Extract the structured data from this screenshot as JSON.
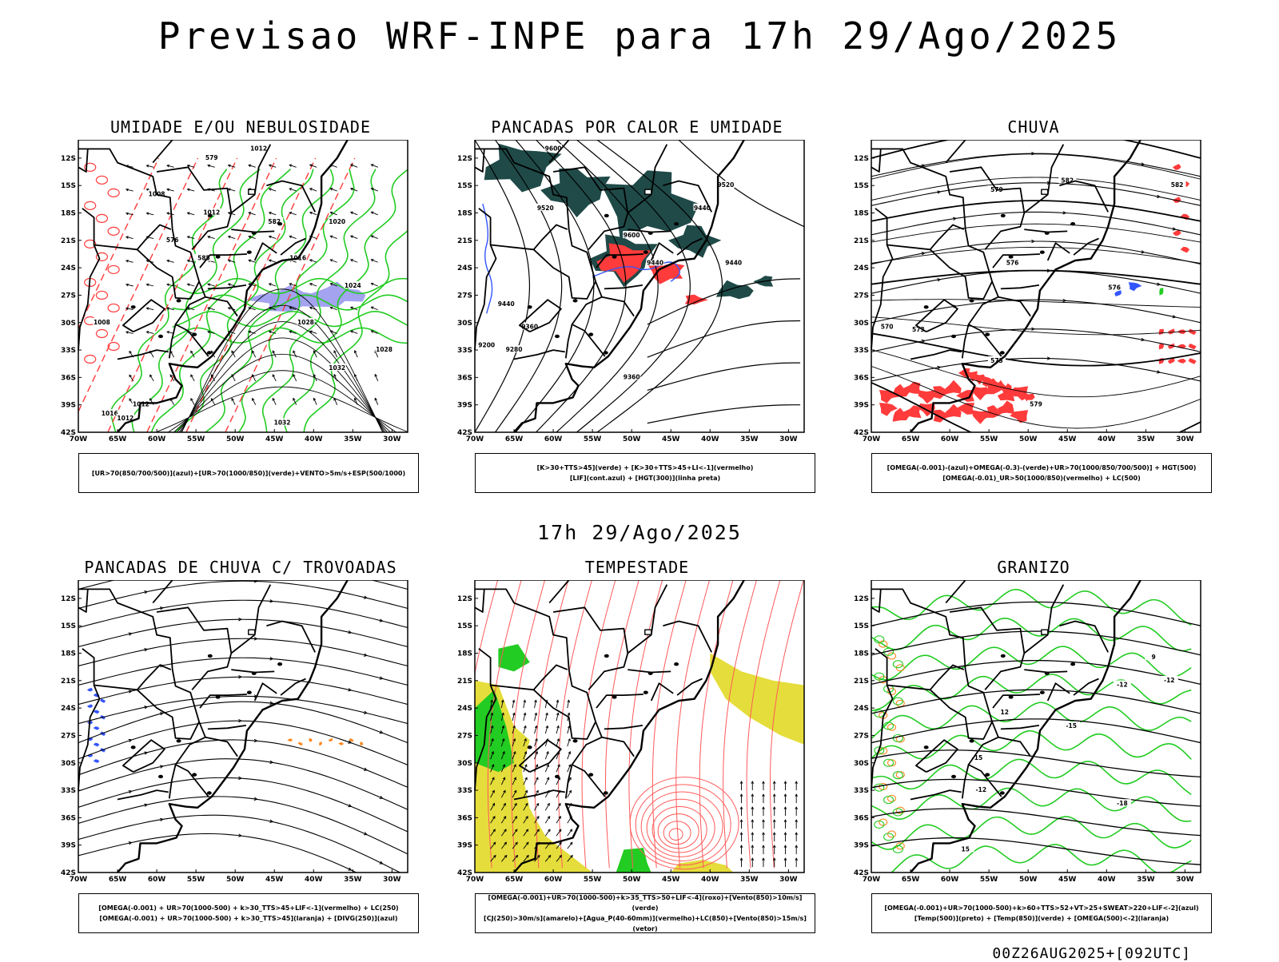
{
  "title": "Previsao WRF-INPE  para 17h 29/Ago/2025",
  "mid_title": "17h 29/Ago/2025",
  "run_id": "00Z26AUG2025+[092UTC]",
  "colors": {
    "red": "#ff3b3b",
    "green": "#22cc22",
    "blue": "#3355ff",
    "lavender": "#a3a3f0",
    "dark": "#1f4a48",
    "yellow": "#e5dd3b",
    "orange": "#ff8820",
    "grey": "#ff8c8c"
  },
  "chart_data": [
    {
      "type": "heatmap",
      "id": "umidade",
      "title": "UMIDADE E/OU NEBULOSIDADE",
      "legend": [
        "[UR>70(850/700/500)](azul)+[UR>70(1000/850)](verde)+VENTO>5m/s+ESP(500/1000)"
      ],
      "x_ticks": [
        "70W",
        "65W",
        "60W",
        "55W",
        "50W",
        "45W",
        "40W",
        "35W",
        "30W"
      ],
      "y_ticks": [
        "12S",
        "15S",
        "18S",
        "21S",
        "24S",
        "27S",
        "30S",
        "33S",
        "36S",
        "39S",
        "42S"
      ],
      "xlim": [
        -70,
        -28
      ],
      "ylim": [
        -42,
        -10
      ],
      "contour_labels": [
        "1012",
        "1008",
        "1012",
        "1016",
        "1020",
        "1024",
        "1028",
        "1032",
        "1028",
        "1032",
        "1016",
        "1012",
        "1008",
        "1012",
        "579",
        "582",
        "585",
        "576"
      ]
    },
    {
      "type": "heatmap",
      "id": "pancadas-calor",
      "title": "PANCADAS POR CALOR E UMIDADE",
      "legend": [
        "[K>30+TTS>45](verde) + [K>30+TTS>45+LI<-1](vermelho)",
        "[LIF](cont.azul) + [HGT(300)](linha preta)"
      ],
      "x_ticks": [
        "70W",
        "65W",
        "60W",
        "55W",
        "50W",
        "45W",
        "40W",
        "35W",
        "30W"
      ],
      "y_ticks": [
        "12S",
        "15S",
        "18S",
        "21S",
        "24S",
        "27S",
        "30S",
        "33S",
        "36S",
        "39S",
        "42S"
      ],
      "xlim": [
        -70,
        -28
      ],
      "ylim": [
        -42,
        -10
      ],
      "contour_labels": [
        "9600",
        "9520",
        "9520",
        "9440",
        "9440",
        "9440",
        "9360",
        "9280",
        "9200",
        "9360",
        "9440",
        "9600"
      ]
    },
    {
      "type": "heatmap",
      "id": "chuva",
      "title": "CHUVA",
      "legend": [
        "[OMEGA(-0.001)-(azul)+OMEGA(-0.3)-(verde)+UR>70(1000/850/700/500)] + HGT(500)",
        "[OMEGA(-0.01)_UR>50(1000/850)(vermelho) + LC(500)"
      ],
      "x_ticks": [
        "70W",
        "65W",
        "60W",
        "55W",
        "50W",
        "45W",
        "40W",
        "35W",
        "30W"
      ],
      "y_ticks": [
        "12S",
        "15S",
        "18S",
        "21S",
        "24S",
        "27S",
        "30S",
        "33S",
        "36S",
        "39S",
        "42S"
      ],
      "xlim": [
        -70,
        -28
      ],
      "ylim": [
        -42,
        -10
      ],
      "contour_labels": [
        "582",
        "582",
        "579",
        "576",
        "576",
        "573",
        "573",
        "579",
        "570"
      ]
    },
    {
      "type": "heatmap",
      "id": "trovoadas",
      "title": "PANCADAS DE CHUVA C/ TROVOADAS",
      "legend": [
        "[OMEGA(-0.001) + UR>70(1000-500) + k>30_TTS>45+LIF<-1](vermelho) + LC(250)",
        "[OMEGA(-0.001) + UR>70(1000-500) + k>30_TTS>45](laranja) + [DIVG(250)](azul)"
      ],
      "x_ticks": [
        "70W",
        "65W",
        "60W",
        "55W",
        "50W",
        "45W",
        "40W",
        "35W",
        "30W"
      ],
      "y_ticks": [
        "12S",
        "15S",
        "18S",
        "21S",
        "24S",
        "27S",
        "30S",
        "33S",
        "36S",
        "39S",
        "42S"
      ],
      "xlim": [
        -70,
        -28
      ],
      "ylim": [
        -42,
        -10
      ],
      "contour_labels": []
    },
    {
      "type": "heatmap",
      "id": "tempestade",
      "title": "TEMPESTADE",
      "legend": [
        "[OMEGA(-0.001)+UR>70(1000-500)+k>35_TTS>50+LIF<-4](roxo)+[Vento(850)>10m/s](verde)",
        "[CJ(250)>30m/s](amarelo)+[Agua_P(40-60mm)](vermelho)+LC(850)+[Vento(850)>15m/s](vetor)"
      ],
      "x_ticks": [
        "70W",
        "65W",
        "60W",
        "55W",
        "50W",
        "45W",
        "40W",
        "35W",
        "30W"
      ],
      "y_ticks": [
        "12S",
        "15S",
        "18S",
        "21S",
        "24S",
        "27S",
        "30S",
        "33S",
        "36S",
        "39S",
        "42S"
      ],
      "xlim": [
        -70,
        -28
      ],
      "ylim": [
        -42,
        -10
      ],
      "contour_labels": []
    },
    {
      "type": "heatmap",
      "id": "granizo",
      "title": "GRANIZO",
      "legend": [
        "[OMEGA(-0.001)+UR>70(1000-500)+k>60+TTS>52+VT>25+SWEAT>220+LIF<-2](azul)",
        "[Temp(500)](preto) + [Temp(850)](verde) + [OMEGA(500)<-2](laranja)"
      ],
      "x_ticks": [
        "70W",
        "65W",
        "60W",
        "55W",
        "50W",
        "45W",
        "40W",
        "35W",
        "30W"
      ],
      "y_ticks": [
        "12S",
        "15S",
        "18S",
        "21S",
        "24S",
        "27S",
        "30S",
        "33S",
        "36S",
        "39S",
        "42S"
      ],
      "xlim": [
        -70,
        -28
      ],
      "ylim": [
        -42,
        -10
      ],
      "contour_labels": [
        "-12",
        "-15",
        "-12",
        "-15",
        "-18",
        "-12",
        "15",
        "12",
        "9"
      ]
    }
  ]
}
